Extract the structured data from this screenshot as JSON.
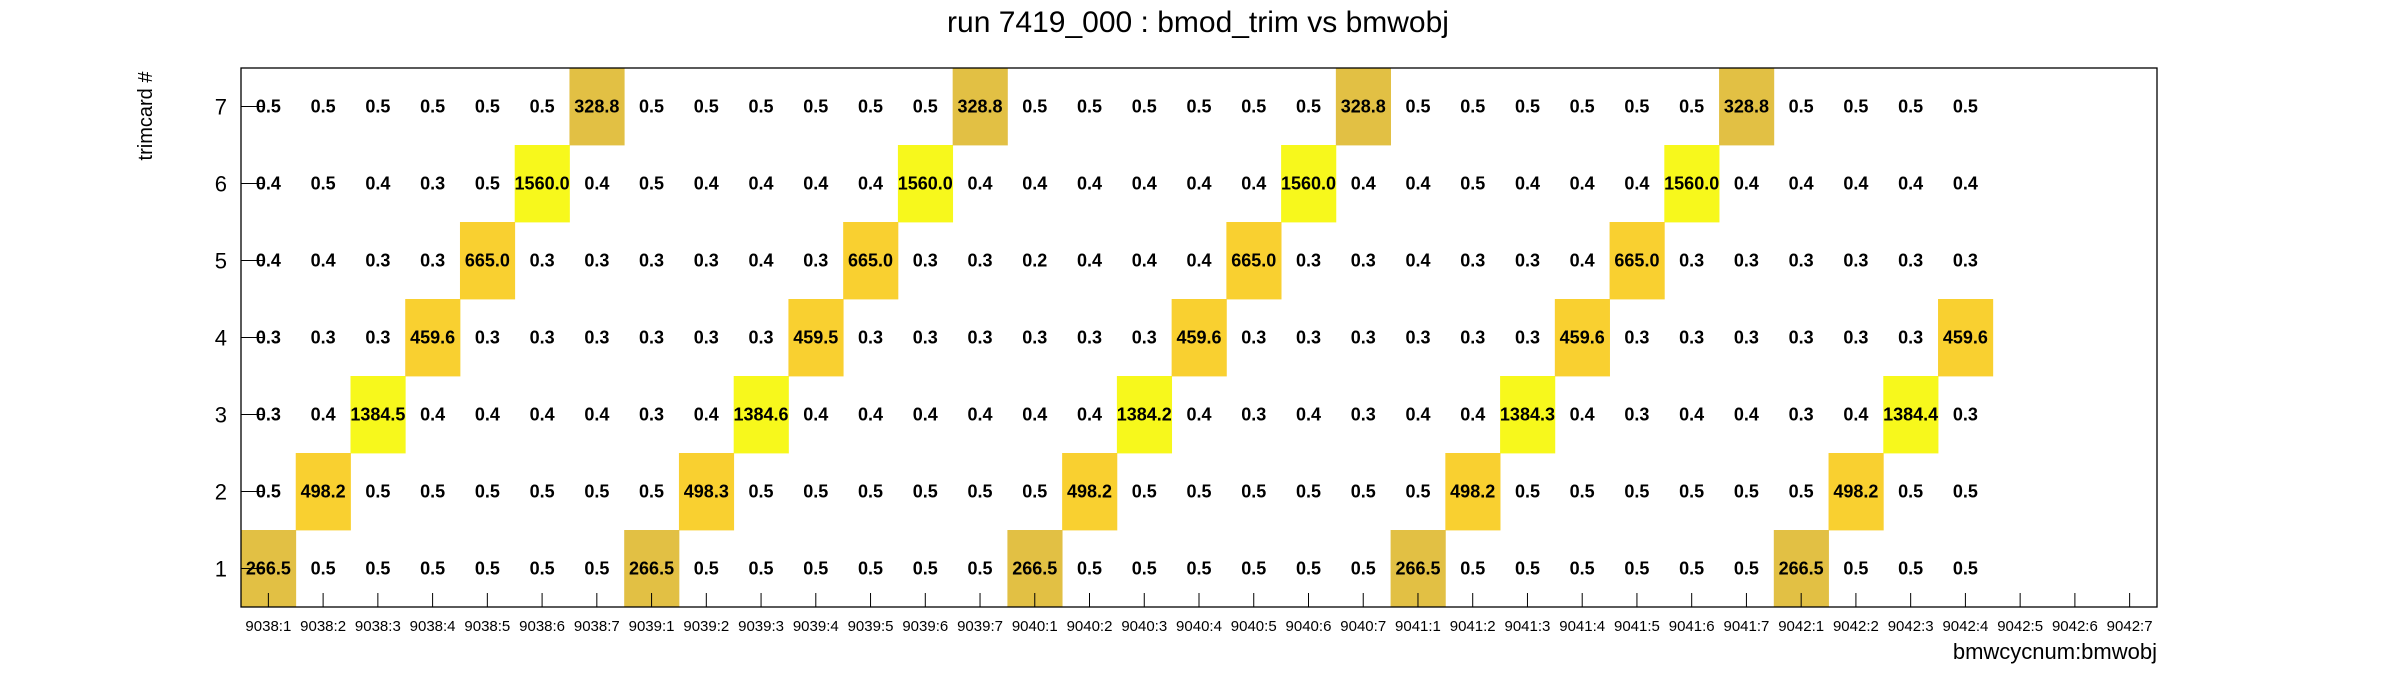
{
  "chart_data": {
    "type": "heatmap",
    "title": "run 7419_000 : bmod_trim vs bmwobj",
    "xlabel": "bmwcycnum:bmwobj",
    "ylabel": "trimcard #",
    "x_categories": [
      "9038:1",
      "9038:2",
      "9038:3",
      "9038:4",
      "9038:5",
      "9038:6",
      "9038:7",
      "9039:1",
      "9039:2",
      "9039:3",
      "9039:4",
      "9039:5",
      "9039:6",
      "9039:7",
      "9040:1",
      "9040:2",
      "9040:3",
      "9040:4",
      "9040:5",
      "9040:6",
      "9040:7",
      "9041:1",
      "9041:2",
      "9041:3",
      "9041:4",
      "9041:5",
      "9041:6",
      "9041:7",
      "9042:1",
      "9042:2",
      "9042:3",
      "9042:4",
      "9042:5",
      "9042:6",
      "9042:7"
    ],
    "y_categories": [
      "1",
      "2",
      "3",
      "4",
      "5",
      "6",
      "7"
    ],
    "values": [
      [
        266.5,
        0.5,
        0.5,
        0.5,
        0.5,
        0.5,
        0.5,
        266.5,
        0.5,
        0.5,
        0.5,
        0.5,
        0.5,
        0.5,
        266.5,
        0.5,
        0.5,
        0.5,
        0.5,
        0.5,
        0.5,
        266.5,
        0.5,
        0.5,
        0.5,
        0.5,
        0.5,
        0.5,
        266.5,
        0.5,
        0.5,
        0.5,
        null,
        null,
        null
      ],
      [
        0.5,
        498.2,
        0.5,
        0.5,
        0.5,
        0.5,
        0.5,
        0.5,
        498.3,
        0.5,
        0.5,
        0.5,
        0.5,
        0.5,
        0.5,
        498.2,
        0.5,
        0.5,
        0.5,
        0.5,
        0.5,
        0.5,
        498.2,
        0.5,
        0.5,
        0.5,
        0.5,
        0.5,
        0.5,
        498.2,
        0.5,
        0.5,
        null,
        null,
        null
      ],
      [
        0.3,
        0.4,
        1384.5,
        0.4,
        0.4,
        0.4,
        0.4,
        0.3,
        0.4,
        1384.6,
        0.4,
        0.4,
        0.4,
        0.4,
        0.4,
        0.4,
        1384.2,
        0.4,
        0.3,
        0.4,
        0.3,
        0.4,
        0.4,
        1384.3,
        0.4,
        0.3,
        0.4,
        0.4,
        0.3,
        0.4,
        1384.4,
        0.3,
        null,
        null,
        null
      ],
      [
        0.3,
        0.3,
        0.3,
        459.6,
        0.3,
        0.3,
        0.3,
        0.3,
        0.3,
        0.3,
        459.5,
        0.3,
        0.3,
        0.3,
        0.3,
        0.3,
        0.3,
        459.6,
        0.3,
        0.3,
        0.3,
        0.3,
        0.3,
        0.3,
        459.6,
        0.3,
        0.3,
        0.3,
        0.3,
        0.3,
        0.3,
        459.6,
        null,
        null,
        null
      ],
      [
        0.4,
        0.4,
        0.3,
        0.3,
        665.0,
        0.3,
        0.3,
        0.3,
        0.3,
        0.4,
        0.3,
        665.0,
        0.3,
        0.3,
        0.2,
        0.4,
        0.4,
        0.4,
        665.0,
        0.3,
        0.3,
        0.4,
        0.3,
        0.3,
        0.4,
        665.0,
        0.3,
        0.3,
        0.3,
        0.3,
        0.3,
        0.3,
        null,
        null,
        null
      ],
      [
        0.4,
        0.5,
        0.4,
        0.3,
        0.5,
        1560.0,
        0.4,
        0.5,
        0.4,
        0.4,
        0.4,
        0.4,
        1560.0,
        0.4,
        0.4,
        0.4,
        0.4,
        0.4,
        0.4,
        1560.0,
        0.4,
        0.4,
        0.5,
        0.4,
        0.4,
        0.4,
        1560.0,
        0.4,
        0.4,
        0.4,
        0.4,
        0.4,
        null,
        null,
        null
      ],
      [
        0.5,
        0.5,
        0.5,
        0.5,
        0.5,
        0.5,
        328.8,
        0.5,
        0.5,
        0.5,
        0.5,
        0.5,
        0.5,
        328.8,
        0.5,
        0.5,
        0.5,
        0.5,
        0.5,
        0.5,
        328.8,
        0.5,
        0.5,
        0.5,
        0.5,
        0.5,
        0.5,
        328.8,
        0.5,
        0.5,
        0.5,
        0.5,
        null,
        null,
        null
      ]
    ],
    "value_format": "0.1f",
    "colors": {
      "high": "#f7f81c",
      "mid": "#f9d030",
      "low": "#e2c044",
      "frame": "#000000",
      "text": "#000000"
    },
    "legend": "none"
  }
}
